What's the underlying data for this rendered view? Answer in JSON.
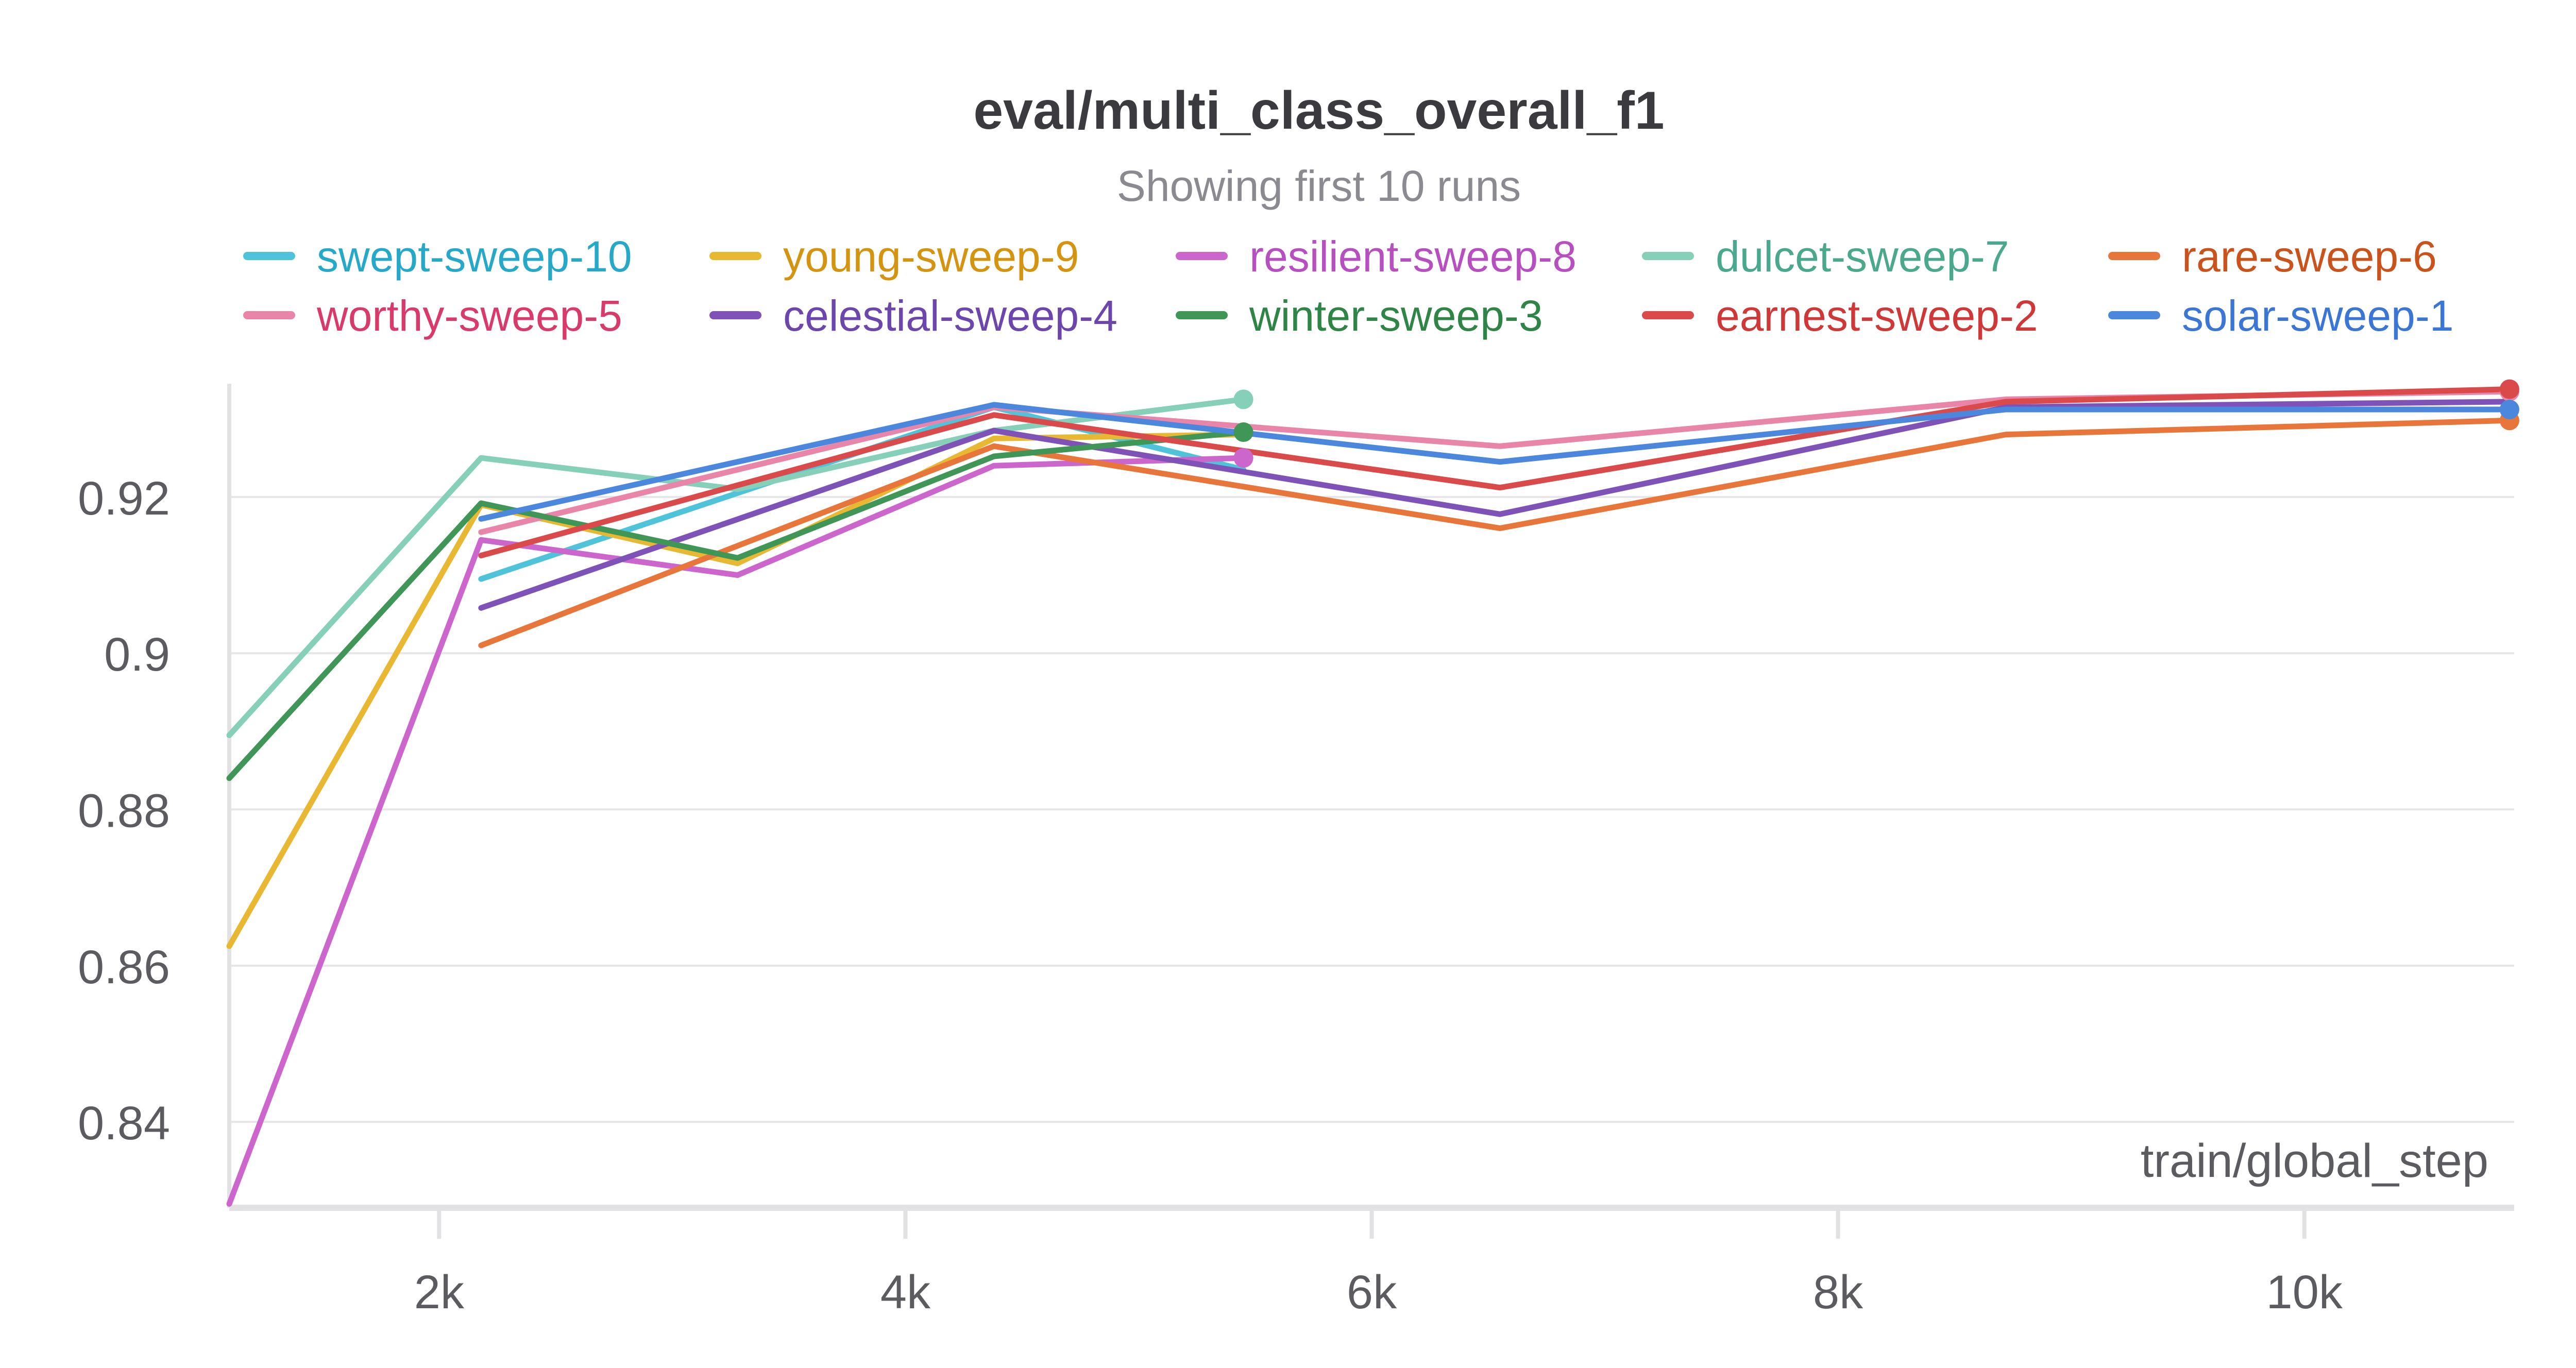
{
  "chart_data": {
    "type": "line",
    "title": "eval/multi_class_overall_f1",
    "subtitle": "Showing first 10 runs",
    "xlabel": "train/global_step",
    "ylabel": "",
    "xlim": [
      1100,
      10900
    ],
    "ylim": [
      0.829,
      0.9345
    ],
    "xticks": [
      2000,
      4000,
      6000,
      8000,
      10000
    ],
    "xtick_labels": [
      "2k",
      "4k",
      "6k",
      "8k",
      "10k"
    ],
    "yticks": [
      0.84,
      0.86,
      0.88,
      0.9,
      0.92
    ],
    "ytick_labels": [
      "0.84",
      "0.86",
      "0.88",
      "0.9",
      "0.92"
    ],
    "grid": true,
    "legend_placement": "top",
    "series": [
      {
        "name": "swept-sweep-10",
        "color": "#4fc3d9",
        "text_color": "#26a9c8",
        "x": [
          2180,
          4380,
          5450
        ],
        "y": [
          0.9095,
          0.9315,
          0.9235
        ],
        "end_marker": false
      },
      {
        "name": "young-sweep-9",
        "color": "#e8b832",
        "text_color": "#d4940f",
        "x": [
          1100,
          2180,
          3280,
          4380,
          5450
        ],
        "y": [
          0.8625,
          0.919,
          0.9115,
          0.9275,
          0.928
        ],
        "end_marker": false
      },
      {
        "name": "resilient-sweep-8",
        "color": "#cc66cc",
        "text_color": "#b84fc0",
        "x": [
          1100,
          2180,
          3280,
          4380,
          5450
        ],
        "y": [
          0.8295,
          0.9145,
          0.91,
          0.924,
          0.925
        ],
        "end_marker": true
      },
      {
        "name": "dulcet-sweep-7",
        "color": "#86cfb8",
        "text_color": "#4aa98c",
        "x": [
          1100,
          2180,
          3280,
          4380,
          5450
        ],
        "y": [
          0.8895,
          0.925,
          0.921,
          0.9285,
          0.9325
        ],
        "end_marker": true
      },
      {
        "name": "rare-sweep-6",
        "color": "#e8763a",
        "text_color": "#c9531a",
        "x": [
          2180,
          4380,
          6550,
          8720,
          10880
        ],
        "y": [
          0.901,
          0.9265,
          0.916,
          0.928,
          0.9298
        ],
        "end_marker": true
      },
      {
        "name": "worthy-sweep-5",
        "color": "#e985a8",
        "text_color": "#d93a6a",
        "x": [
          2180,
          4380,
          6550,
          8720,
          10880
        ],
        "y": [
          0.9155,
          0.9315,
          0.9265,
          0.9325,
          0.9335
        ],
        "end_marker": true
      },
      {
        "name": "celestial-sweep-4",
        "color": "#7f52b8",
        "text_color": "#6c46ad",
        "x": [
          2180,
          4380,
          6550,
          8720,
          10880
        ],
        "y": [
          0.9058,
          0.9285,
          0.9178,
          0.9315,
          0.9322
        ],
        "end_marker": false
      },
      {
        "name": "winter-sweep-3",
        "color": "#3f9656",
        "text_color": "#2e8546",
        "x": [
          1100,
          2180,
          3280,
          4380,
          5450
        ],
        "y": [
          0.884,
          0.9192,
          0.9122,
          0.9252,
          0.9283
        ],
        "end_marker": true
      },
      {
        "name": "earnest-sweep-2",
        "color": "#db4a4a",
        "text_color": "#d03838",
        "x": [
          2180,
          4380,
          6550,
          8720,
          10880
        ],
        "y": [
          0.9125,
          0.9305,
          0.9212,
          0.9322,
          0.9338
        ],
        "end_marker": true
      },
      {
        "name": "solar-sweep-1",
        "color": "#4a87dd",
        "text_color": "#3a76d6",
        "x": [
          2180,
          4380,
          6550,
          8720,
          10880
        ],
        "y": [
          0.9172,
          0.9318,
          0.9245,
          0.9312,
          0.9312
        ],
        "end_marker": true
      }
    ]
  }
}
